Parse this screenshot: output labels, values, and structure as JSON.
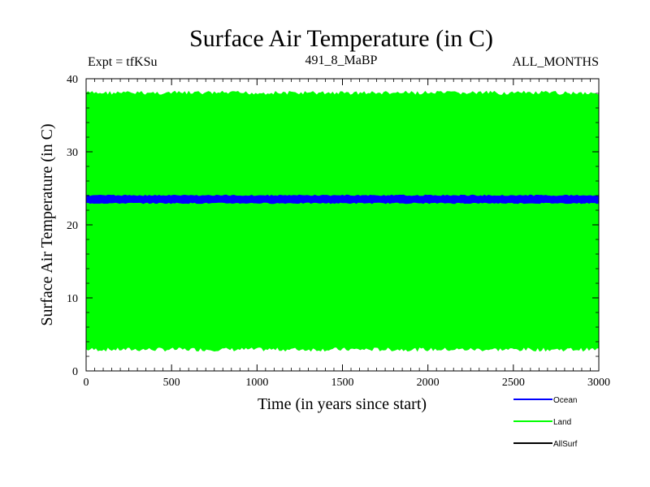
{
  "chart_data": {
    "type": "area",
    "title": "Surface Air Temperature (in C)",
    "subtitle_left": "Expt = tfKSu",
    "subtitle_center": "491_8_MaBP",
    "subtitle_right": "ALL_MONTHS",
    "xlabel": "Time (in years since start)",
    "ylabel": "Surface Air Temperature (in C)",
    "xlim": [
      0,
      3000
    ],
    "ylim": [
      0,
      40
    ],
    "x_ticks": [
      0,
      500,
      1000,
      1500,
      2000,
      2500,
      3000
    ],
    "x_tick_labels": [
      "0",
      "500",
      "1000",
      "1500",
      "2000",
      "2500",
      "3000"
    ],
    "y_ticks": [
      0,
      10,
      20,
      30,
      40
    ],
    "y_tick_labels": [
      "0",
      "10",
      "20",
      "30",
      "40"
    ],
    "grid": false,
    "legend_position": "bottom-right",
    "series": [
      {
        "name": "Ocean",
        "color": "#0000ff",
        "band_min": 22.9,
        "band_max": 24.1,
        "mean": 23.5
      },
      {
        "name": "Land",
        "color": "#00ff00",
        "band_min": 2.7,
        "band_max": 38.3,
        "mean": 20.5
      },
      {
        "name": "AllSurf",
        "color": "#000000",
        "band_min": null,
        "band_max": null,
        "mean": null
      }
    ]
  }
}
